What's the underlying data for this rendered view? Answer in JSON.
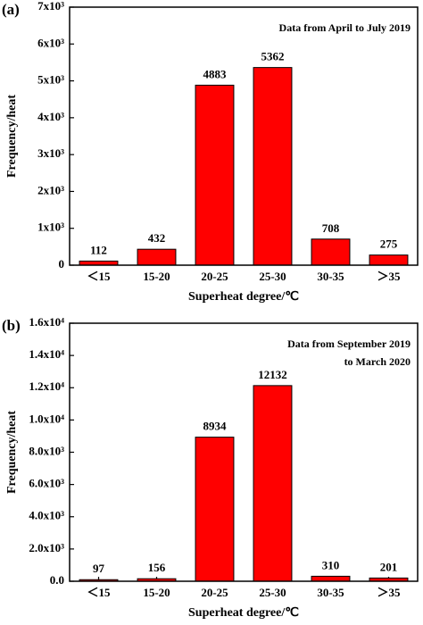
{
  "chart_data": [
    {
      "type": "bar",
      "panel_label": "(a)",
      "annotation": [
        "Data from April to July 2019"
      ],
      "x_label": "Superheat degree/℃",
      "y_label": "Frequency/heat",
      "categories": [
        "＜15",
        "15-20",
        "20-25",
        "25-30",
        "30-35",
        "＞35"
      ],
      "values": [
        112,
        432,
        4883,
        5362,
        708,
        275
      ],
      "color": "#ff0000",
      "ylim": [
        0,
        7000
      ],
      "yticks": [
        0,
        {
          "value": 1000,
          "label": "1x10³"
        },
        {
          "value": 2000,
          "label": "2x10³"
        },
        {
          "value": 3000,
          "label": "3x10³"
        },
        {
          "value": 4000,
          "label": "4x10³"
        },
        {
          "value": 5000,
          "label": "5x10³"
        },
        {
          "value": 6000,
          "label": "6x10³"
        },
        {
          "value": 7000,
          "label": "7x10³"
        }
      ]
    },
    {
      "type": "bar",
      "panel_label": "(b)",
      "annotation": [
        "Data from September 2019",
        "to March 2020"
      ],
      "x_label": "Superheat degree/℃",
      "y_label": "Frequency/heat",
      "categories": [
        "＜15",
        "15-20",
        "20-25",
        "25-30",
        "30-35",
        "＞35"
      ],
      "values": [
        97,
        156,
        8934,
        12132,
        310,
        201
      ],
      "color": "#ff0000",
      "ylim": [
        0,
        16000
      ],
      "yticks": [
        {
          "value": 0,
          "label": "0.0"
        },
        {
          "value": 2000,
          "label": "2.0x10³"
        },
        {
          "value": 4000,
          "label": "4.0x10³"
        },
        {
          "value": 6000,
          "label": "6.0x10³"
        },
        {
          "value": 8000,
          "label": "8.0x10³"
        },
        {
          "value": 10000,
          "label": "1.0x10⁴"
        },
        {
          "value": 12000,
          "label": "1.2x10⁴"
        },
        {
          "value": 14000,
          "label": "1.4x10⁴"
        },
        {
          "value": 16000,
          "label": "1.6x10⁴"
        }
      ]
    }
  ]
}
